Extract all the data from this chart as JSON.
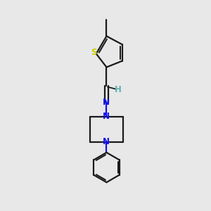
{
  "background_color": "#e8e8e8",
  "bond_color": "#1a1a1a",
  "N_color": "#1010ee",
  "S_color": "#cccc00",
  "H_color": "#5fafaf",
  "line_width": 1.6,
  "fig_width": 3.0,
  "fig_height": 3.0,
  "dpi": 100,
  "xlim": [
    0,
    6
  ],
  "ylim": [
    0,
    10
  ]
}
